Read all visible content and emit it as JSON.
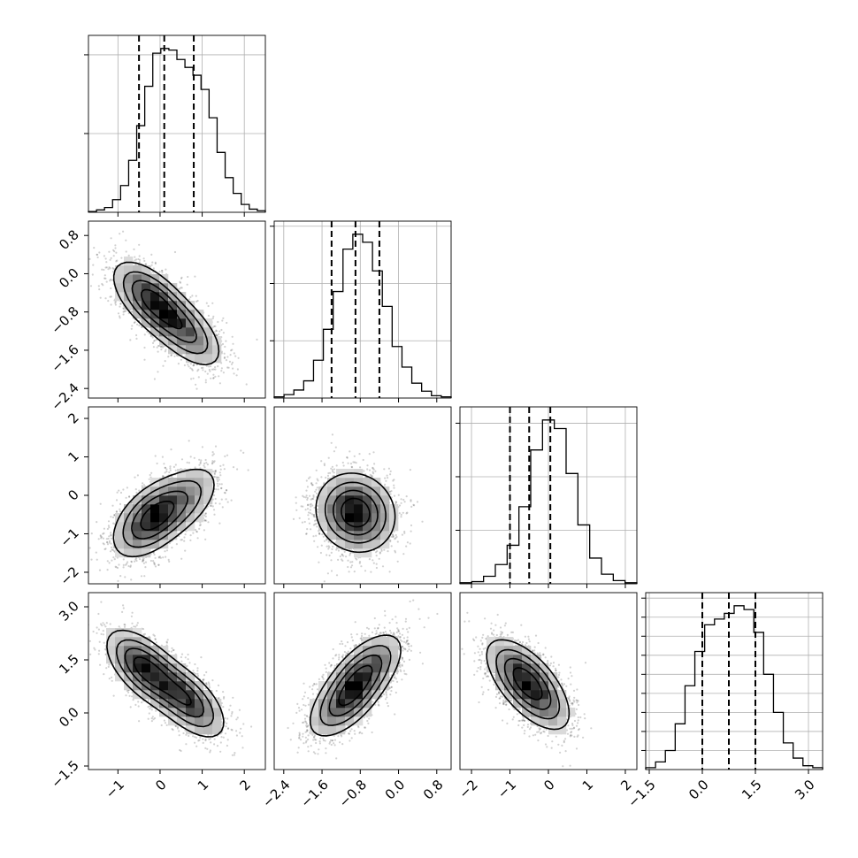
{
  "chart_data": {
    "type": "corner",
    "parameters": [
      {
        "range": [
          -1.7,
          2.5
        ],
        "ticks": [
          -1,
          0,
          1,
          2
        ],
        "ticklabels": [
          "−1",
          "0",
          "1",
          "2"
        ],
        "quantiles": [
          -0.5,
          0.1,
          0.8
        ],
        "hist": [
          0.5,
          1.5,
          3,
          8,
          17,
          33,
          55,
          80,
          101,
          104,
          103,
          97,
          92,
          87,
          78,
          60,
          38,
          22,
          12,
          5,
          2,
          1
        ]
      },
      {
        "range": [
          -2.6,
          1.1
        ],
        "ticks": [
          -2.4,
          -1.6,
          -0.8,
          0.0,
          0.8
        ],
        "ticklabels": [
          "−2.4",
          "−1.6",
          "−0.8",
          "0.0",
          "0.8"
        ],
        "quantiles": [
          -1.4,
          -0.9,
          -0.4
        ],
        "hist": [
          1,
          3,
          7,
          15,
          33,
          60,
          93,
          130,
          143,
          136,
          111,
          80,
          45,
          27,
          13,
          6,
          2,
          1
        ]
      },
      {
        "range": [
          -2.3,
          2.3
        ],
        "ticks": [
          -2,
          -1,
          0,
          1,
          2
        ],
        "ticklabels": [
          "−2",
          "−1",
          "0",
          "1",
          "2"
        ],
        "quantiles": [
          -1.0,
          -0.5,
          0.05
        ],
        "hist": [
          1,
          2,
          7,
          18,
          36,
          72,
          125,
          153,
          145,
          103,
          55,
          24,
          9,
          3,
          1
        ]
      },
      {
        "range": [
          -1.6,
          3.4
        ],
        "ticks": [
          -1.5,
          0.0,
          1.5,
          3.0
        ],
        "ticklabels": [
          "−1.5",
          "0.0",
          "1.5",
          "3.0"
        ],
        "quantiles": [
          0.0,
          0.75,
          1.5
        ],
        "hist": [
          1,
          4,
          10,
          24,
          44,
          62,
          76,
          79,
          82,
          86,
          84,
          72,
          50,
          30,
          14,
          6,
          2,
          1
        ]
      }
    ],
    "pairs": [
      {
        "x": 0,
        "y": 1,
        "rho": -0.6,
        "modes": [
          {
            "x": -0.2,
            "y": -0.55,
            "w": 0.6
          },
          {
            "x": 0.6,
            "y": -1.2,
            "w": 0.4
          }
        ]
      },
      {
        "x": 0,
        "y": 2,
        "rho": 0.5,
        "modes": [
          {
            "x": -0.2,
            "y": -0.6,
            "w": 0.7
          },
          {
            "x": 0.6,
            "y": -0.1,
            "w": 0.3
          }
        ]
      },
      {
        "x": 1,
        "y": 2,
        "rho": -0.1,
        "modes": [
          {
            "x": -0.9,
            "y": -0.45,
            "w": 1.0
          }
        ]
      },
      {
        "x": 0,
        "y": 3,
        "rho": -0.6,
        "modes": [
          {
            "x": -0.35,
            "y": 1.25,
            "w": 0.55
          },
          {
            "x": 0.65,
            "y": 0.35,
            "w": 0.45
          }
        ]
      },
      {
        "x": 1,
        "y": 3,
        "rho": 0.6,
        "modes": [
          {
            "x": -1.1,
            "y": 0.35,
            "w": 0.5
          },
          {
            "x": -0.7,
            "y": 1.2,
            "w": 0.5
          }
        ]
      },
      {
        "x": 2,
        "y": 3,
        "rho": -0.6,
        "modes": [
          {
            "x": -0.65,
            "y": 1.05,
            "w": 0.6
          },
          {
            "x": -0.35,
            "y": 0.45,
            "w": 0.4
          }
        ]
      }
    ]
  }
}
